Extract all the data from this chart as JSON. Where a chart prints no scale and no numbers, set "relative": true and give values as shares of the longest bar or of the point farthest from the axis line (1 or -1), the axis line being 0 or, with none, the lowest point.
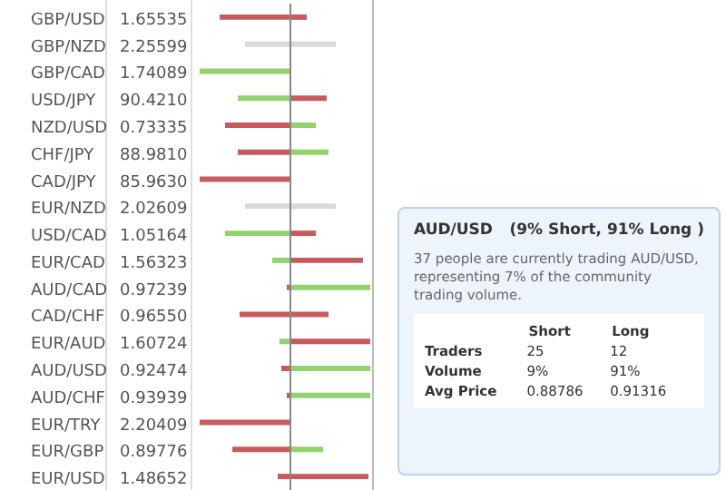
{
  "chart_data": [
    {
      "type": "bar",
      "orientation": "horizontal",
      "stacked": true,
      "relative": true,
      "categories": [
        "GBP/USD",
        "GBP/NZD",
        "GBP/CAD",
        "USD/JPY",
        "NZD/USD",
        "CHF/JPY",
        "CAD/JPY",
        "EUR/NZD",
        "USD/CAD",
        "EUR/CAD",
        "AUD/CAD",
        "CAD/CHF",
        "EUR/AUD",
        "AUD/USD",
        "AUD/CHF",
        "EUR/TRY",
        "EUR/GBP",
        "EUR/USD"
      ],
      "series": [
        {
          "values": [
            -0.78,
            -0.5,
            -1.0,
            -0.58,
            -0.72,
            -0.58,
            -1.0,
            -0.5,
            -0.72,
            -0.2,
            -0.04,
            -0.56,
            -0.12,
            -0.1,
            -0.04,
            -1.0,
            -0.64,
            -0.14
          ],
          "colors": [
            "#c65a5e",
            "#d9d9d9",
            "#92d36e",
            "#92d36e",
            "#c65a5e",
            "#c65a5e",
            "#c65a5e",
            "#d9d9d9",
            "#92d36e",
            "#92d36e",
            "#c65a5e",
            "#c65a5e",
            "#92d36e",
            "#c65a5e",
            "#c65a5e",
            "#c65a5e",
            "#c65a5e",
            "#c65a5e"
          ]
        },
        {
          "values": [
            0.18,
            0.5,
            0,
            0.4,
            0.28,
            0.42,
            0,
            0.5,
            0.28,
            0.8,
            0.88,
            0.42,
            0.88,
            0.88,
            0.88,
            0,
            0.36,
            0.86
          ],
          "colors": [
            "#c65a5e",
            "#d9d9d9",
            "#92d36e",
            "#c65a5e",
            "#92d36e",
            "#92d36e",
            "#c65a5e",
            "#d9d9d9",
            "#c65a5e",
            "#c65a5e",
            "#92d36e",
            "#c65a5e",
            "#c65a5e",
            "#92d36e",
            "#92d36e",
            "#c65a5e",
            "#92d36e",
            "#c65a5e"
          ]
        }
      ],
      "annotations": [
        "1.65535",
        "2.25599",
        "1.74089",
        "90.4210",
        "0.73335",
        "88.9810",
        "85.9630",
        "2.02609",
        "1.05164",
        "1.56323",
        "0.97239",
        "0.96550",
        "1.60724",
        "0.92474",
        "0.93939",
        "2.20409",
        "0.89776",
        "1.48652"
      ]
    },
    {
      "type": "other",
      "title": "AUD/USD",
      "subtitle": "(9% Short, 91% Long )",
      "annotations": [
        "37 people are currently trading AUD/USD, representing 7% of the community trading volume.",
        "Short",
        "Long",
        "Traders",
        "25",
        "12",
        "Volume",
        "9%",
        "91%",
        "Avg Price",
        "0.88786",
        "0.91316"
      ]
    }
  ]
}
